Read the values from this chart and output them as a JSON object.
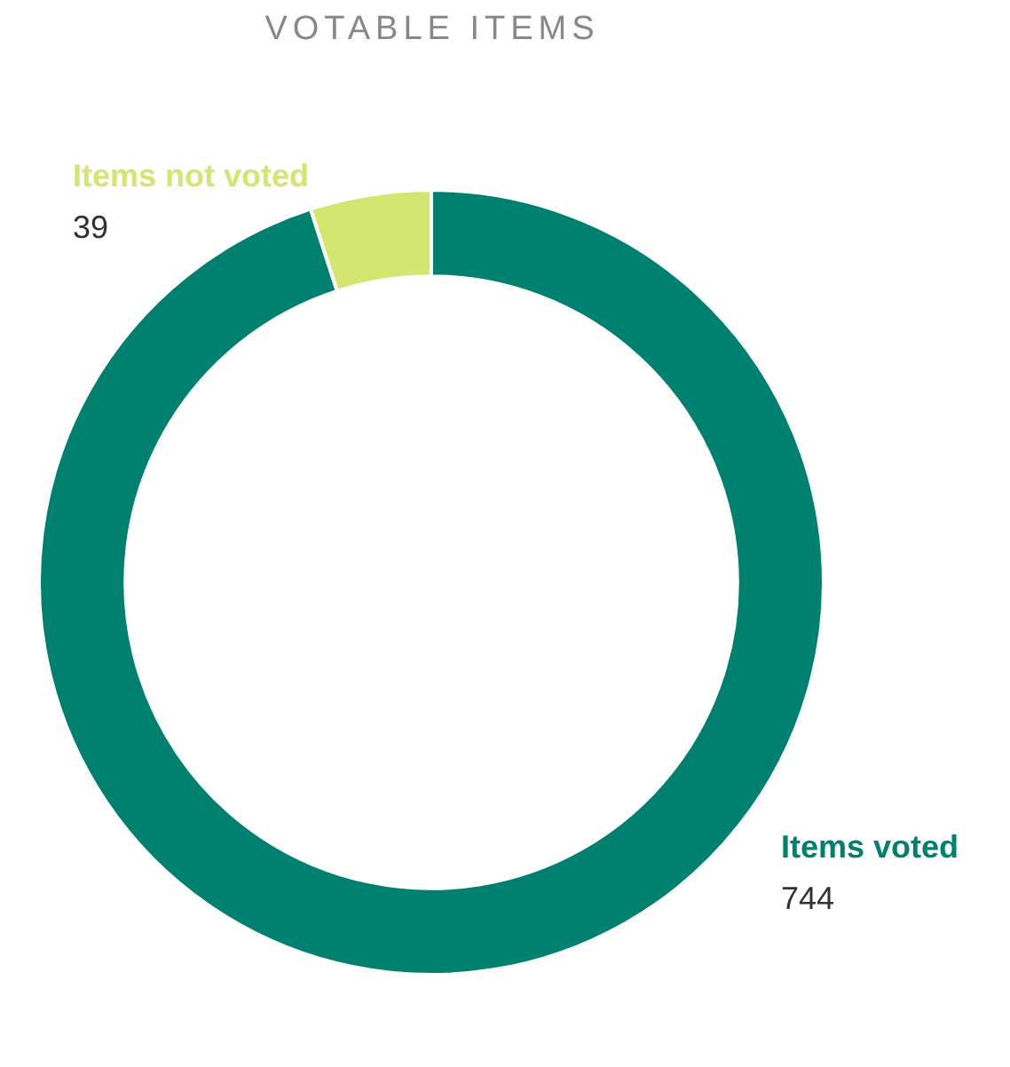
{
  "chart_data": {
    "type": "donut",
    "title": "VOTABLE ITEMS",
    "categories": [
      "Items voted",
      "Items not voted"
    ],
    "values": [
      744,
      39
    ],
    "colors": [
      "#00806f",
      "#d3e66f"
    ],
    "data_labels": true,
    "legend": false
  }
}
